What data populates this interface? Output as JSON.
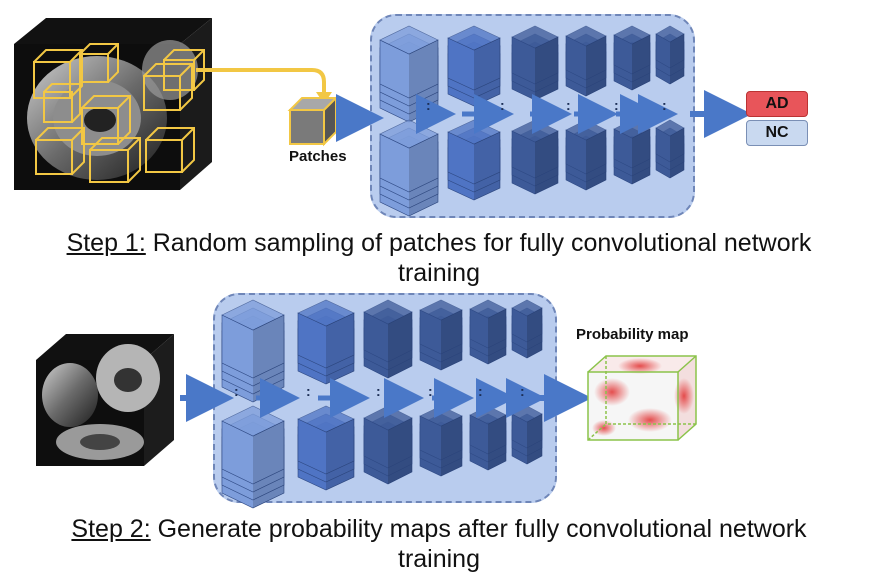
{
  "step1": {
    "step_label": "Step 1:",
    "text": " Random sampling of patches for fully convolutional network",
    "text_line2": "training"
  },
  "step2": {
    "step_label": "Step 2:",
    "text": " Generate probability maps after fully convolutional network",
    "text_line2": "training"
  },
  "patches_label": "Patches",
  "output_labels": {
    "ad": "AD",
    "nc": "NC"
  },
  "probability_map_label": "Probability map",
  "colors": {
    "panel_fill": "#b9ccee",
    "panel_border": "#6f86b8",
    "cube_light": "#7d9ddb",
    "cube_mid": "#4f74c4",
    "cube_dark": "#3d5a98",
    "arrow": "#4a78c8",
    "ad_fill": "#e8555a",
    "nc_fill": "#c9d9f0",
    "patch_outline": "#f2c744"
  }
}
